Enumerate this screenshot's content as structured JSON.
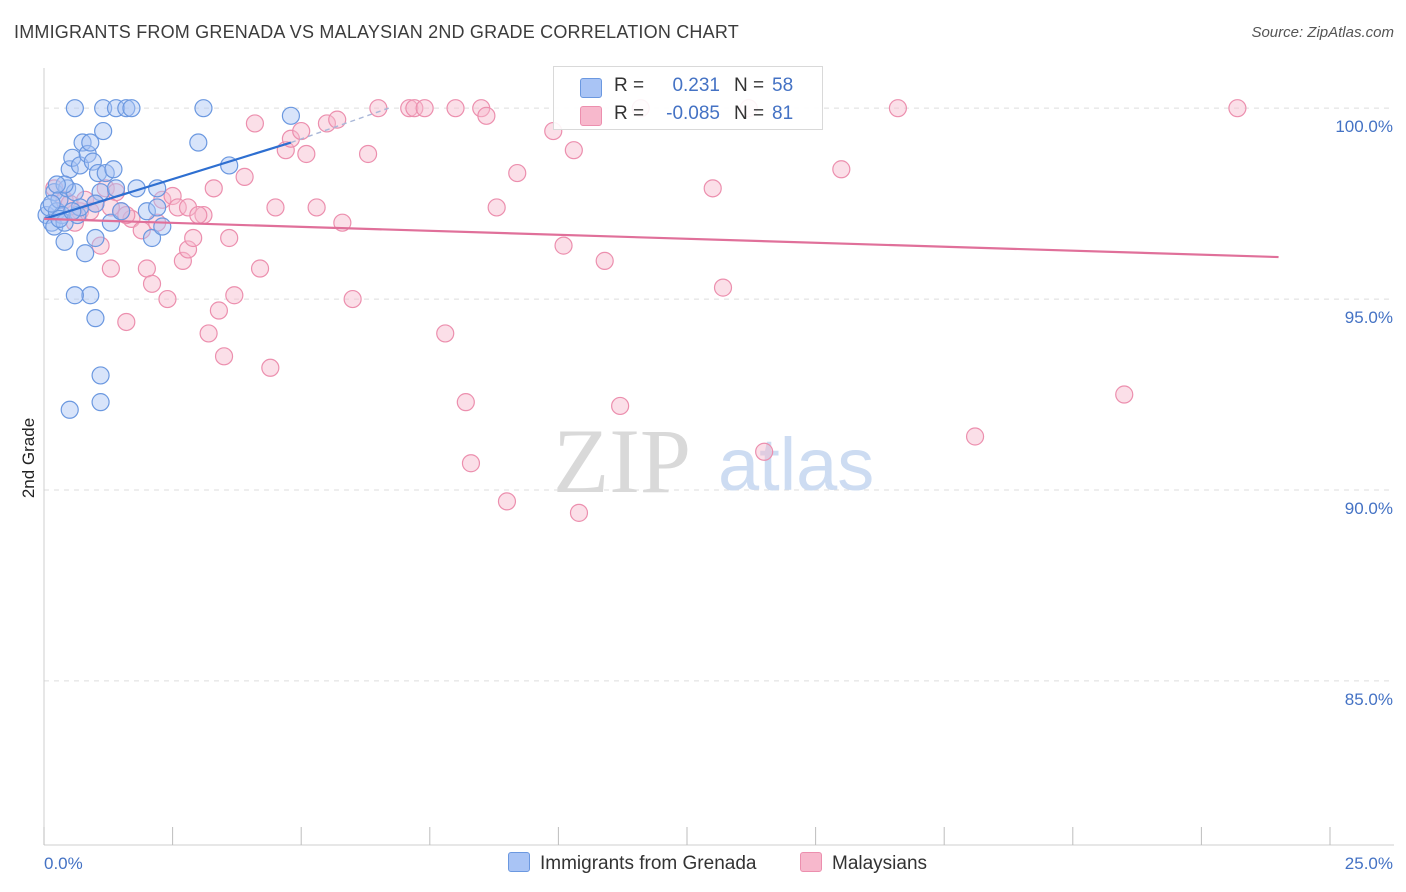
{
  "title": "IMMIGRANTS FROM GRENADA VS MALAYSIAN 2ND GRADE CORRELATION CHART",
  "source": "Source: ZipAtlas.com",
  "watermark": {
    "zip": "ZIP",
    "atlas": "atlas"
  },
  "colors": {
    "blue_fill": "#a9c4f5",
    "blue_stroke": "#6b98e0",
    "blue_line": "#2e6fd1",
    "pink_fill": "#f7b8cc",
    "pink_stroke": "#ec8fae",
    "pink_line": "#e0709a",
    "axis_text": "#4472c4",
    "grid": "#dddddd"
  },
  "legend": {
    "rows": [
      {
        "r_label": "R =",
        "r_value": "0.231",
        "n_label": "N =",
        "n_value": "58"
      },
      {
        "r_label": "R =",
        "r_value": "-0.085",
        "n_label": "N =",
        "n_value": "81"
      }
    ]
  },
  "bottom_legend": {
    "series1": "Immigrants from Grenada",
    "series2": "Malaysians"
  },
  "chart_data": {
    "type": "scatter",
    "title": "IMMIGRANTS FROM GRENADA VS MALAYSIAN 2ND GRADE CORRELATION CHART",
    "xlabel": "",
    "ylabel": "2nd Grade",
    "xlim": [
      0,
      25
    ],
    "ylim": [
      80.7,
      101.0
    ],
    "x_tick_labels": [
      "0.0%",
      "25.0%"
    ],
    "y_ticks": [
      100,
      95,
      90,
      85
    ],
    "y_tick_labels": [
      "100.0%",
      "95.0%",
      "90.0%",
      "85.0%"
    ],
    "grid": true,
    "series": [
      {
        "name": "Immigrants from Grenada",
        "r": 0.231,
        "n": 58,
        "trend": {
          "x": [
            0.0,
            4.8
          ],
          "y": [
            97.1,
            99.1
          ]
        },
        "trend_dashed": {
          "x": [
            4.8,
            6.7
          ],
          "y": [
            99.1,
            100.0
          ]
        },
        "points": [
          [
            0.05,
            97.2
          ],
          [
            0.1,
            97.4
          ],
          [
            0.15,
            97.0
          ],
          [
            0.2,
            96.9
          ],
          [
            0.2,
            97.8
          ],
          [
            0.25,
            97.3
          ],
          [
            0.3,
            97.6
          ],
          [
            0.35,
            97.2
          ],
          [
            0.4,
            96.5
          ],
          [
            0.4,
            97.0
          ],
          [
            0.45,
            97.9
          ],
          [
            0.5,
            98.4
          ],
          [
            0.55,
            98.7
          ],
          [
            0.6,
            97.8
          ],
          [
            0.65,
            97.2
          ],
          [
            0.7,
            98.5
          ],
          [
            0.75,
            99.1
          ],
          [
            0.8,
            96.2
          ],
          [
            0.85,
            98.8
          ],
          [
            0.9,
            99.1
          ],
          [
            0.95,
            98.6
          ],
          [
            1.0,
            96.6
          ],
          [
            1.05,
            98.3
          ],
          [
            1.1,
            97.8
          ],
          [
            1.15,
            99.4
          ],
          [
            1.2,
            98.3
          ],
          [
            1.3,
            97.0
          ],
          [
            1.35,
            98.4
          ],
          [
            1.4,
            97.9
          ],
          [
            1.5,
            97.3
          ],
          [
            0.6,
            100.0
          ],
          [
            1.15,
            100.0
          ],
          [
            1.4,
            100.0
          ],
          [
            1.6,
            100.0
          ],
          [
            1.7,
            100.0
          ],
          [
            2.0,
            97.3
          ],
          [
            2.1,
            96.6
          ],
          [
            2.2,
            97.9
          ],
          [
            2.2,
            97.4
          ],
          [
            2.3,
            96.9
          ],
          [
            3.1,
            100.0
          ],
          [
            3.0,
            99.1
          ],
          [
            3.6,
            98.5
          ],
          [
            4.8,
            99.8
          ],
          [
            0.9,
            95.1
          ],
          [
            1.0,
            94.5
          ],
          [
            1.1,
            93.0
          ],
          [
            1.1,
            92.3
          ],
          [
            0.5,
            92.1
          ],
          [
            0.6,
            95.1
          ],
          [
            0.3,
            97.1
          ],
          [
            0.15,
            97.5
          ],
          [
            0.4,
            98.0
          ],
          [
            1.0,
            97.5
          ],
          [
            0.7,
            97.4
          ],
          [
            0.55,
            97.3
          ],
          [
            1.8,
            97.9
          ],
          [
            0.25,
            98.0
          ]
        ]
      },
      {
        "name": "Malaysians",
        "r": -0.085,
        "n": 81,
        "trend": {
          "x": [
            0.0,
            24.0
          ],
          "y": [
            97.1,
            96.1
          ]
        },
        "points": [
          [
            0.2,
            97.9
          ],
          [
            0.4,
            97.6
          ],
          [
            0.5,
            97.5
          ],
          [
            0.7,
            97.3
          ],
          [
            0.8,
            97.6
          ],
          [
            0.9,
            97.3
          ],
          [
            1.0,
            97.5
          ],
          [
            1.1,
            96.4
          ],
          [
            1.2,
            97.9
          ],
          [
            1.3,
            95.8
          ],
          [
            1.4,
            97.8
          ],
          [
            1.5,
            97.3
          ],
          [
            1.6,
            94.4
          ],
          [
            1.7,
            97.1
          ],
          [
            1.9,
            96.8
          ],
          [
            2.0,
            95.8
          ],
          [
            2.1,
            95.4
          ],
          [
            2.2,
            97.0
          ],
          [
            2.3,
            97.6
          ],
          [
            2.4,
            95.0
          ],
          [
            2.5,
            97.7
          ],
          [
            2.6,
            97.4
          ],
          [
            2.7,
            96.0
          ],
          [
            2.8,
            96.3
          ],
          [
            2.9,
            96.6
          ],
          [
            3.1,
            97.2
          ],
          [
            3.2,
            94.1
          ],
          [
            3.3,
            97.9
          ],
          [
            3.4,
            94.7
          ],
          [
            3.5,
            93.5
          ],
          [
            3.6,
            96.6
          ],
          [
            3.7,
            95.1
          ],
          [
            3.9,
            98.2
          ],
          [
            4.1,
            99.6
          ],
          [
            4.2,
            95.8
          ],
          [
            4.4,
            93.2
          ],
          [
            4.5,
            97.4
          ],
          [
            4.7,
            98.9
          ],
          [
            4.8,
            99.2
          ],
          [
            5.0,
            99.4
          ],
          [
            5.1,
            98.8
          ],
          [
            5.3,
            97.4
          ],
          [
            5.5,
            99.6
          ],
          [
            5.7,
            99.7
          ],
          [
            5.8,
            97.0
          ],
          [
            6.0,
            95.0
          ],
          [
            6.3,
            98.8
          ],
          [
            6.5,
            100.0
          ],
          [
            7.1,
            100.0
          ],
          [
            7.2,
            100.0
          ],
          [
            7.4,
            100.0
          ],
          [
            7.8,
            94.1
          ],
          [
            8.0,
            100.0
          ],
          [
            8.2,
            92.3
          ],
          [
            8.3,
            90.7
          ],
          [
            8.5,
            100.0
          ],
          [
            8.6,
            99.8
          ],
          [
            8.8,
            97.4
          ],
          [
            9.0,
            89.7
          ],
          [
            9.2,
            98.3
          ],
          [
            9.9,
            99.4
          ],
          [
            10.1,
            96.4
          ],
          [
            10.3,
            98.9
          ],
          [
            10.4,
            89.4
          ],
          [
            10.9,
            96.0
          ],
          [
            11.2,
            92.2
          ],
          [
            11.6,
            100.0
          ],
          [
            13.0,
            97.9
          ],
          [
            13.2,
            95.3
          ],
          [
            13.7,
            100.0
          ],
          [
            14.0,
            91.0
          ],
          [
            15.5,
            98.4
          ],
          [
            16.6,
            100.0
          ],
          [
            18.1,
            91.4
          ],
          [
            21.0,
            92.5
          ],
          [
            23.2,
            100.0
          ],
          [
            1.3,
            97.4
          ],
          [
            1.6,
            97.2
          ],
          [
            2.8,
            97.4
          ],
          [
            0.6,
            97.0
          ],
          [
            3.0,
            97.2
          ]
        ]
      }
    ]
  }
}
